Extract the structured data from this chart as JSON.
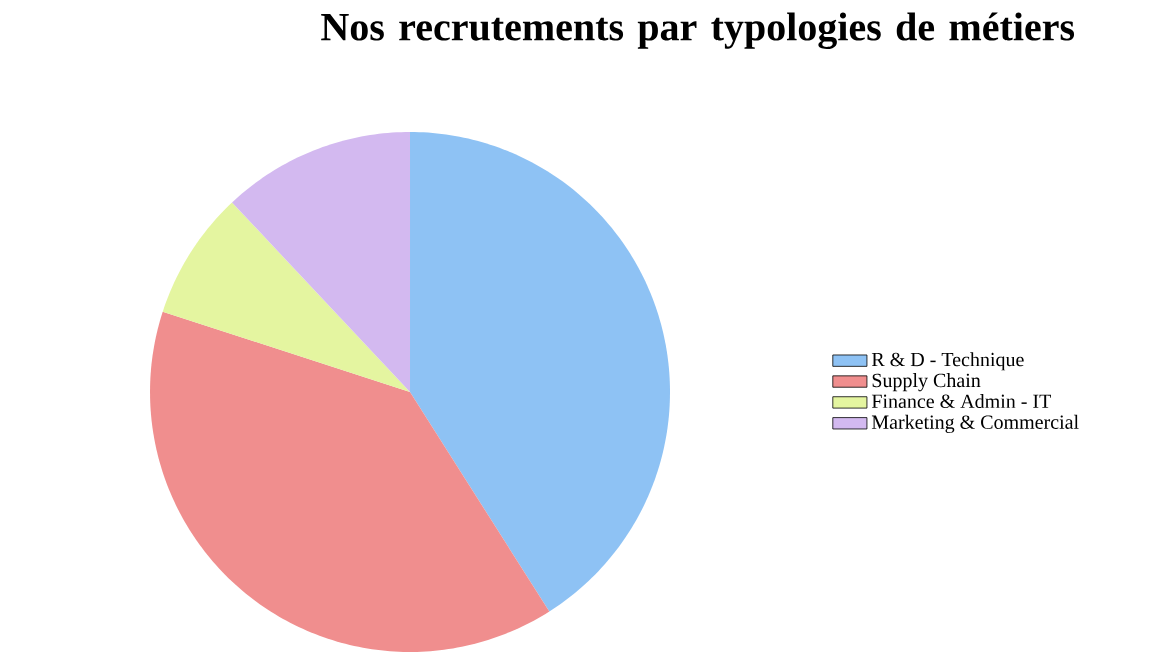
{
  "chart_data": {
    "type": "pie",
    "title": "Nos recrutements par typologies de métiers",
    "categories": [
      "R & D - Technique",
      "Supply Chain",
      "Finance & Admin - IT",
      "Marketing & Commercial"
    ],
    "values": [
      41,
      39,
      8,
      12
    ],
    "colors": [
      "#8ec2f4",
      "#f08e8e",
      "#e4f5a0",
      "#d3b9f0"
    ],
    "legend": "right"
  }
}
